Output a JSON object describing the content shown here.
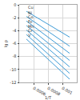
{
  "chart_data": {
    "type": "line",
    "x_label": "1/T",
    "y_label": "lg p",
    "x": [
      0.0005,
      0.0011
    ],
    "series": [
      {
        "name": "Cu",
        "color": "#3d9bd6",
        "values": [
          -1.0,
          -5.0
        ]
      },
      {
        "name": "Ni",
        "color": "#3d9bd6",
        "values": [
          -1.8,
          -6.4
        ]
      },
      {
        "name": "Co",
        "color": "#3d9bd6",
        "values": [
          -2.5,
          -7.5
        ]
      },
      {
        "name": "Fe",
        "color": "#3d9bd6",
        "values": [
          -3.2,
          -8.6
        ]
      },
      {
        "name": "Mn",
        "color": "#3d9bd6",
        "values": [
          -3.9,
          -9.6
        ]
      },
      {
        "name": "Cr",
        "color": "#3d9bd6",
        "values": [
          -4.6,
          -10.6
        ]
      },
      {
        "name": "V",
        "color": "#3d9bd6",
        "values": [
          -5.3,
          -11.5
        ]
      }
    ],
    "xlim": [
      0.0004,
      0.0012
    ],
    "xticks": [
      0.0006,
      0.0008,
      0.001
    ],
    "ylim": [
      -12,
      0
    ],
    "yticks": [
      -12,
      -10,
      -8,
      -6,
      -4,
      -2,
      0
    ],
    "grid": true
  }
}
